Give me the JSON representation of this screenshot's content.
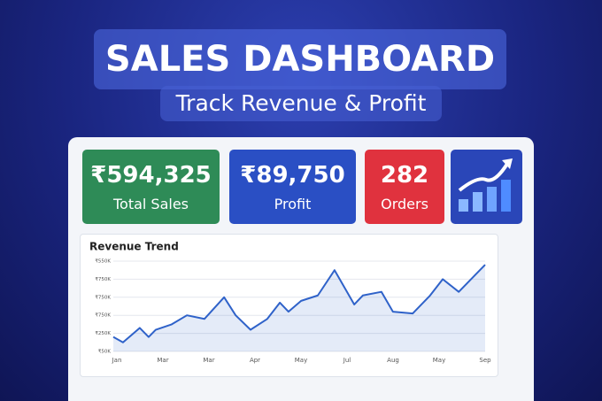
{
  "header": {
    "title": "SALES DASHBOARD",
    "subtitle": "Track Revenue & Profit"
  },
  "kpis": [
    {
      "value": "₹594,325",
      "label": "Total Sales",
      "color": "#2e8b57"
    },
    {
      "value": "₹89,750",
      "label": "Profit",
      "color": "#2a4fc4"
    },
    {
      "value": "282",
      "label": "Orders",
      "color": "#e0323e"
    }
  ],
  "chart_data": {
    "type": "line",
    "title": "Revenue Trend",
    "x_labels": [
      "Jan",
      "Mar",
      "Mar",
      "Apr",
      "May",
      "Jul",
      "Aug",
      "May",
      "Sep"
    ],
    "y_labels": [
      "₹50K",
      "₹250K",
      "₹750K",
      "₹750K",
      "₹750K",
      "₹550K"
    ],
    "xlim": [
      0,
      100
    ],
    "ylim": [
      0,
      5
    ],
    "x": [
      0,
      2.6,
      7.1,
      9.5,
      11.4,
      15.7,
      19.8,
      24.5,
      29.8,
      32.9,
      36.9,
      41.4,
      44.8,
      47.1,
      50.5,
      55,
      59.5,
      64.8,
      67.1,
      72.1,
      75.2,
      80.5,
      85.2,
      88.6,
      92.9,
      100
    ],
    "series": [
      {
        "color": "#2f62c9",
        "values": [
          0.8,
          0.5,
          1.3,
          0.8,
          1.2,
          1.5,
          2,
          1.8,
          3,
          2,
          1.2,
          1.8,
          2.7,
          2.2,
          2.8,
          3.1,
          4.5,
          2.6,
          3.1,
          3.3,
          2.2,
          2.1,
          3.1,
          4,
          3.3,
          4.8
        ]
      }
    ],
    "grid": true
  }
}
